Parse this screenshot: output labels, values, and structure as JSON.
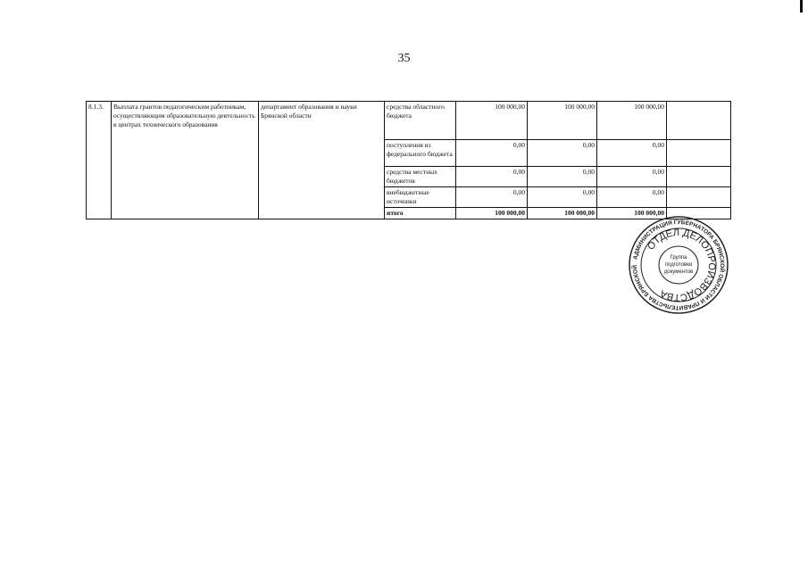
{
  "page_number": "35",
  "table": {
    "row_number": "8.1.3.",
    "activity": "Выплата грантов педагогическим работникам, осуществляющим образовательную деятельность в центрах технического образования",
    "executor": "департамент образования и науки Брянской области",
    "rows": [
      {
        "source": "средства областного бюджета",
        "values": [
          "100 000,00",
          "100 000,00",
          "100 000,00"
        ]
      },
      {
        "source": "поступления из федерального бюджета",
        "values": [
          "0,00",
          "0,00",
          "0,00"
        ]
      },
      {
        "source": "средства местных бюджетов",
        "values": [
          "0,00",
          "0,00",
          "0,00"
        ]
      },
      {
        "source": "внебюджетные источники",
        "values": [
          "0,00",
          "0,00",
          "0,00"
        ]
      },
      {
        "source": "итого",
        "values": [
          "100 000,00",
          "100 000,00",
          "100 000,00"
        ],
        "bold": true
      }
    ]
  },
  "stamp": {
    "outer_text": "АДМИНИСТРАЦИЯ ГУБЕРНАТОРА БРЯНСКОЙ ОБЛАСТИ И ПРАВИТЕЛЬСТВА БРЯНСКОЙ ОБЛАСТИ",
    "ring_text": "ОТДЕЛ ДЕЛОПРОИЗВОДСТВА",
    "center_text": "Группа подготовки документов"
  }
}
